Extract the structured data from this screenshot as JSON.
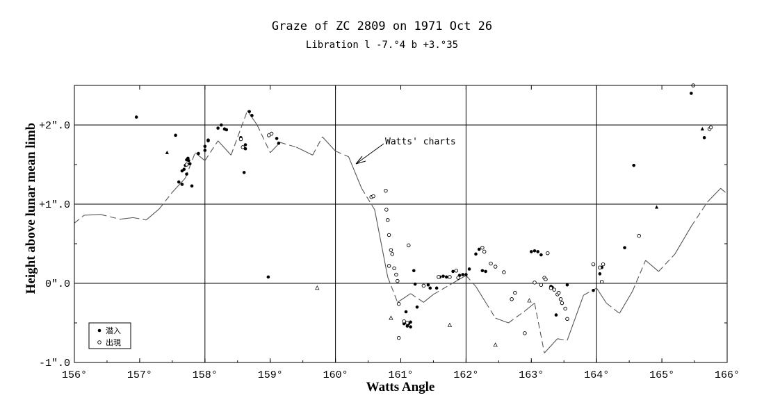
{
  "chart_data": {
    "type": "scatter",
    "title": "Graze of ZC 2809 on 1971 Oct 26",
    "subtitle": "Libration   l -7.°4   b +3.°35",
    "xlabel": "Watts Angle",
    "ylabel": "Height above lunar mean limb",
    "xlim": [
      156,
      166
    ],
    "ylim": [
      -1.0,
      2.5
    ],
    "x_ticks": [
      "156°",
      "157°",
      "158°",
      "159°",
      "160°",
      "161°",
      "162°",
      "163°",
      "164°",
      "165°",
      "166°"
    ],
    "y_ticks": [
      "-1\".0",
      "0\".0",
      "+1\".0",
      "+2\".0"
    ],
    "grid": true,
    "legend_position": "bottom-left",
    "annotation": "Watts' charts",
    "annotation_arrow_to": [
      160.3,
      1.5
    ],
    "legend": [
      {
        "symbol": "filled-dot",
        "label": "潜入"
      },
      {
        "symbol": "open-circle",
        "label": "出現"
      }
    ],
    "watts_profile": [
      [
        156.0,
        0.76
      ],
      [
        156.15,
        0.86
      ],
      [
        156.4,
        0.87
      ],
      [
        156.7,
        0.81
      ],
      [
        156.9,
        0.83
      ],
      [
        157.1,
        0.8
      ],
      [
        157.3,
        0.94
      ],
      [
        157.5,
        1.15
      ],
      [
        157.7,
        1.33
      ],
      [
        157.85,
        1.65
      ],
      [
        158.0,
        1.55
      ],
      [
        158.2,
        1.8
      ],
      [
        158.4,
        1.62
      ],
      [
        158.65,
        2.18
      ],
      [
        158.8,
        2.0
      ],
      [
        159.0,
        1.65
      ],
      [
        159.15,
        1.78
      ],
      [
        159.4,
        1.72
      ],
      [
        159.65,
        1.62
      ],
      [
        159.8,
        1.85
      ],
      [
        160.0,
        1.67
      ],
      [
        160.2,
        1.6
      ],
      [
        160.4,
        1.2
      ],
      [
        160.6,
        0.93
      ],
      [
        160.8,
        0.08
      ],
      [
        160.95,
        -0.24
      ],
      [
        161.15,
        -0.13
      ],
      [
        161.35,
        -0.24
      ],
      [
        161.5,
        -0.14
      ],
      [
        161.75,
        -0.02
      ],
      [
        162.0,
        0.1
      ],
      [
        162.15,
        -0.04
      ],
      [
        162.3,
        -0.24
      ],
      [
        162.45,
        -0.44
      ],
      [
        162.65,
        -0.5
      ],
      [
        162.9,
        -0.35
      ],
      [
        163.05,
        -0.25
      ],
      [
        163.2,
        -0.88
      ],
      [
        163.4,
        -0.7
      ],
      [
        163.55,
        -0.72
      ],
      [
        163.8,
        -0.15
      ],
      [
        164.0,
        -0.06
      ],
      [
        164.15,
        -0.25
      ],
      [
        164.35,
        -0.38
      ],
      [
        164.55,
        -0.1
      ],
      [
        164.75,
        0.29
      ],
      [
        164.95,
        0.15
      ],
      [
        165.2,
        0.37
      ],
      [
        165.45,
        0.72
      ],
      [
        165.7,
        1.03
      ],
      [
        165.9,
        1.2
      ],
      [
        166.0,
        1.13
      ]
    ],
    "series": [
      {
        "name": "潜入",
        "marker": "filled-dot",
        "points": [
          [
            156.95,
            2.1
          ],
          [
            157.55,
            1.87
          ],
          [
            157.6,
            1.28
          ],
          [
            157.65,
            1.25
          ],
          [
            157.65,
            1.42
          ],
          [
            157.68,
            1.44
          ],
          [
            157.7,
            1.49
          ],
          [
            157.72,
            1.38
          ],
          [
            157.72,
            1.56
          ],
          [
            157.74,
            1.58
          ],
          [
            157.75,
            1.55
          ],
          [
            157.77,
            1.51
          ],
          [
            157.8,
            1.23
          ],
          [
            157.9,
            1.64
          ],
          [
            158.0,
            1.73
          ],
          [
            158.0,
            1.68
          ],
          [
            158.05,
            1.8
          ],
          [
            158.05,
            1.81
          ],
          [
            158.2,
            1.96
          ],
          [
            158.25,
            2.0
          ],
          [
            158.3,
            1.95
          ],
          [
            158.33,
            1.94
          ],
          [
            158.55,
            1.84
          ],
          [
            158.6,
            1.4
          ],
          [
            158.62,
            1.7
          ],
          [
            158.62,
            1.75
          ],
          [
            158.68,
            2.17
          ],
          [
            158.72,
            2.12
          ],
          [
            158.97,
            0.08
          ],
          [
            159.1,
            1.83
          ],
          [
            159.13,
            1.77
          ],
          [
            161.05,
            -0.51
          ],
          [
            161.08,
            -0.36
          ],
          [
            161.1,
            -0.54
          ],
          [
            161.12,
            -0.51
          ],
          [
            161.15,
            -0.55
          ],
          [
            161.15,
            -0.49
          ],
          [
            161.2,
            0.16
          ],
          [
            161.22,
            -0.01
          ],
          [
            161.25,
            -0.3
          ],
          [
            161.42,
            -0.02
          ],
          [
            161.45,
            -0.06
          ],
          [
            161.55,
            -0.06
          ],
          [
            161.6,
            0.08
          ],
          [
            161.65,
            0.09
          ],
          [
            161.7,
            0.08
          ],
          [
            161.8,
            0.15
          ],
          [
            161.9,
            0.1
          ],
          [
            161.95,
            0.11
          ],
          [
            162.0,
            0.11
          ],
          [
            162.05,
            0.18
          ],
          [
            162.15,
            0.37
          ],
          [
            162.2,
            0.43
          ],
          [
            162.25,
            0.16
          ],
          [
            162.3,
            0.15
          ],
          [
            163.0,
            0.4
          ],
          [
            163.05,
            0.41
          ],
          [
            163.1,
            0.4
          ],
          [
            163.15,
            0.36
          ],
          [
            163.3,
            -0.04
          ],
          [
            163.32,
            -0.05
          ],
          [
            163.38,
            -0.4
          ],
          [
            163.55,
            -0.02
          ],
          [
            163.95,
            -0.09
          ],
          [
            164.05,
            0.12
          ],
          [
            164.08,
            0.2
          ],
          [
            164.43,
            0.45
          ],
          [
            164.57,
            1.49
          ],
          [
            165.45,
            2.4
          ],
          [
            165.65,
            1.84
          ]
        ]
      },
      {
        "name": "出現",
        "marker": "open-circle",
        "points": [
          [
            157.72,
            1.5
          ],
          [
            158.55,
            1.82
          ],
          [
            158.58,
            1.72
          ],
          [
            158.98,
            1.87
          ],
          [
            159.02,
            1.89
          ],
          [
            160.55,
            1.09
          ],
          [
            160.58,
            1.1
          ],
          [
            160.77,
            1.17
          ],
          [
            160.78,
            0.93
          ],
          [
            160.8,
            0.8
          ],
          [
            160.82,
            0.61
          ],
          [
            160.82,
            0.22
          ],
          [
            160.85,
            0.42
          ],
          [
            160.87,
            0.37
          ],
          [
            160.9,
            0.19
          ],
          [
            160.93,
            0.11
          ],
          [
            160.95,
            0.03
          ],
          [
            160.97,
            -0.26
          ],
          [
            160.97,
            -0.69
          ],
          [
            161.05,
            -0.48
          ],
          [
            161.1,
            -0.5
          ],
          [
            161.12,
            0.48
          ],
          [
            161.35,
            -0.03
          ],
          [
            161.58,
            0.08
          ],
          [
            161.75,
            0.08
          ],
          [
            161.85,
            0.16
          ],
          [
            161.88,
            0.07
          ],
          [
            162.25,
            0.45
          ],
          [
            162.28,
            0.4
          ],
          [
            162.38,
            0.25
          ],
          [
            162.45,
            0.21
          ],
          [
            162.58,
            0.14
          ],
          [
            162.7,
            -0.2
          ],
          [
            162.75,
            -0.12
          ],
          [
            162.9,
            -0.63
          ],
          [
            163.05,
            0.01
          ],
          [
            163.15,
            -0.02
          ],
          [
            163.2,
            0.07
          ],
          [
            163.22,
            0.05
          ],
          [
            163.25,
            0.38
          ],
          [
            163.3,
            -0.06
          ],
          [
            163.35,
            -0.08
          ],
          [
            163.4,
            -0.14
          ],
          [
            163.42,
            -0.12
          ],
          [
            163.45,
            -0.2
          ],
          [
            163.47,
            -0.25
          ],
          [
            163.52,
            -0.32
          ],
          [
            163.55,
            -0.45
          ],
          [
            163.95,
            0.24
          ],
          [
            164.05,
            0.2
          ],
          [
            164.08,
            0.02
          ],
          [
            164.1,
            0.24
          ],
          [
            164.65,
            0.6
          ],
          [
            165.73,
            1.95
          ],
          [
            165.75,
            1.97
          ],
          [
            165.48,
            2.5
          ]
        ]
      },
      {
        "name": "",
        "marker": "filled-triangle",
        "points": [
          [
            157.42,
            1.65
          ],
          [
            164.92,
            0.96
          ],
          [
            165.62,
            1.95
          ]
        ]
      },
      {
        "name": "",
        "marker": "open-triangle",
        "points": [
          [
            159.72,
            -0.06
          ],
          [
            160.85,
            -0.44
          ],
          [
            161.75,
            -0.53
          ],
          [
            162.45,
            -0.78
          ],
          [
            162.97,
            -0.22
          ]
        ]
      }
    ]
  }
}
